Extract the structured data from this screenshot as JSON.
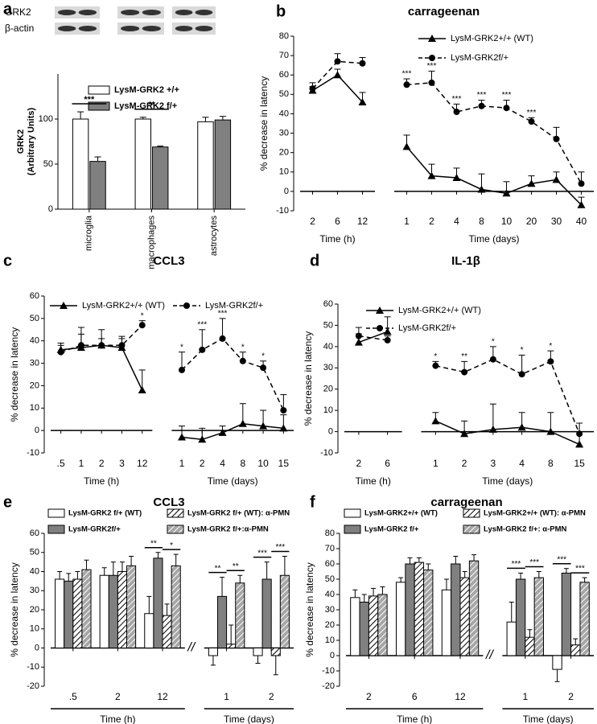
{
  "chart_data": [
    {
      "type": "bar",
      "label": "a",
      "blot_labels": [
        "GRK2",
        "β-actin"
      ],
      "ylabel": [
        "GRK2",
        "(Arbitrary Units)"
      ],
      "categories": [
        "microglia",
        "macrophages",
        "astrocytes"
      ],
      "series": [
        {
          "name": "LysM-GRK2 +/+",
          "color": "#ffffff",
          "values": [
            100,
            100,
            97
          ],
          "errors": [
            8,
            2,
            5
          ]
        },
        {
          "name": "LysM-GRK2 f/+",
          "color": "#808080",
          "values": [
            53,
            69,
            99
          ],
          "errors": [
            5,
            1,
            4
          ]
        }
      ],
      "stars": [
        "***",
        "**",
        null
      ],
      "ylim": [
        0,
        150
      ],
      "yticks": [
        0,
        50,
        100
      ]
    },
    {
      "type": "line",
      "label": "b",
      "title": "carrageenan",
      "ylabel": "% decrease in latency",
      "ylim": [
        -10,
        80
      ],
      "yticks": [
        -10,
        0,
        10,
        20,
        30,
        40,
        50,
        60,
        70,
        80
      ],
      "series": [
        {
          "name": "LysM-GRK2+/+ (WT)",
          "color": "#000000",
          "marker": "triangle",
          "dashed": false
        },
        {
          "name": "LysM-GRK2f/+",
          "color": "#000000",
          "marker": "circle",
          "dashed": true
        }
      ],
      "panels": [
        {
          "xlabel": "Time (h)",
          "categories": [
            "2",
            "6",
            "12"
          ],
          "values": [
            [
              52,
              60,
              46
            ],
            [
              53,
              67,
              66
            ]
          ],
          "errors": [
            [
              2,
              3,
              5
            ],
            [
              3,
              4,
              3
            ]
          ]
        },
        {
          "xlabel": "Time (days)",
          "categories": [
            "1",
            "2",
            "4",
            "8",
            "10",
            "20",
            "30",
            "40"
          ],
          "values": [
            [
              23,
              8,
              7,
              1,
              -1,
              4,
              6,
              -7
            ],
            [
              55,
              56,
              41,
              44,
              43,
              36,
              27,
              4
            ]
          ],
          "errors": [
            [
              6,
              6,
              5,
              8,
              6,
              4,
              4,
              4
            ],
            [
              3,
              6,
              4,
              3,
              4,
              2,
              6,
              6
            ]
          ],
          "stars": [
            "***",
            "***",
            "***",
            "***",
            "***",
            "***",
            null,
            null
          ]
        }
      ]
    },
    {
      "type": "line",
      "label": "c",
      "title": "CCL3",
      "ylabel": "% decrease in latency",
      "ylim": [
        -10,
        60
      ],
      "yticks": [
        -10,
        0,
        10,
        20,
        30,
        40,
        50,
        60
      ],
      "series": [
        {
          "name": "LysM-GRK2+/+ (WT)",
          "color": "#000000",
          "marker": "triangle",
          "dashed": false
        },
        {
          "name": "LysM-GRK2f/+",
          "color": "#000000",
          "marker": "circle",
          "dashed": true
        }
      ],
      "panels": [
        {
          "xlabel": "Time (h)",
          "categories": [
            ".5",
            "1",
            "2",
            "3",
            "12"
          ],
          "values": [
            [
              36,
              37,
              38,
              37,
              18
            ],
            [
              35,
              38,
              38,
              38,
              47
            ]
          ],
          "errors": [
            [
              2,
              9,
              7,
              5,
              9
            ],
            [
              4,
              5,
              3,
              3,
              2
            ]
          ],
          "stars": [
            null,
            null,
            null,
            null,
            "*"
          ]
        },
        {
          "xlabel": "Time (days)",
          "categories": [
            "1",
            "2",
            "4",
            "8",
            "10",
            "15"
          ],
          "values": [
            [
              -3,
              -4,
              -1,
              3,
              2,
              1
            ],
            [
              27,
              36,
              41,
              31,
              28,
              9
            ]
          ],
          "errors": [
            [
              5,
              5,
              3,
              9,
              7,
              6
            ],
            [
              8,
              9,
              9,
              4,
              3,
              7
            ]
          ],
          "stars": [
            "*",
            "***",
            "***",
            "*",
            "*",
            null
          ]
        }
      ]
    },
    {
      "type": "line",
      "label": "d",
      "title": "IL-1β",
      "ylabel": "% decrease in latency",
      "ylim": [
        -10,
        60
      ],
      "yticks": [
        -10,
        0,
        10,
        20,
        30,
        40,
        50,
        60
      ],
      "series": [
        {
          "name": "LysM-GRK2+/+ (WT)",
          "color": "#000000",
          "marker": "triangle",
          "dashed": false
        },
        {
          "name": "LysM-GRK2f/+",
          "color": "#000000",
          "marker": "circle",
          "dashed": true
        }
      ],
      "panels": [
        {
          "xlabel": "Time (h)",
          "categories": [
            "2",
            "6"
          ],
          "values": [
            [
              42,
              47
            ],
            [
              45,
              43
            ]
          ],
          "errors": [
            [
              4,
              7
            ],
            [
              4,
              2
            ]
          ]
        },
        {
          "xlabel": "Time (days)",
          "categories": [
            "1",
            "2",
            "3",
            "4",
            "8",
            "15"
          ],
          "values": [
            [
              5,
              -1,
              1,
              2,
              0,
              -6
            ],
            [
              31,
              28,
              34,
              27,
              33,
              -1
            ]
          ],
          "errors": [
            [
              4,
              6,
              12,
              7,
              9,
              6
            ],
            [
              2,
              5,
              6,
              9,
              5,
              5
            ]
          ],
          "stars": [
            "*",
            "**",
            "*",
            "*",
            "*",
            null
          ]
        }
      ]
    },
    {
      "type": "grouped-bar",
      "label": "e",
      "title": "CCL3",
      "ylabel": "% decrease in latency",
      "ylim": [
        -20,
        60
      ],
      "yticks": [
        -20,
        -10,
        0,
        10,
        20,
        30,
        40,
        50,
        60
      ],
      "series": [
        {
          "name": "LysM-GRK2 f/+ (WT)",
          "color": "#ffffff",
          "hatch": false
        },
        {
          "name": "LysM-GRK2f/+",
          "color": "#808080",
          "hatch": false
        },
        {
          "name": "LysM-GRK2 f/+ (WT): α-PMN",
          "color": "#ffffff",
          "hatch": true
        },
        {
          "name": "LysM-GRK2 f/+:α-PMN",
          "color": "#a6a6a6",
          "hatch": true
        }
      ],
      "panels": [
        {
          "xlabel": "Time (h)",
          "categories": [
            ".5",
            "2",
            "12"
          ],
          "values": [
            [
              36,
              38,
              18
            ],
            [
              35,
              38,
              47
            ],
            [
              36,
              40,
              17
            ],
            [
              41,
              43,
              43
            ]
          ],
          "errors": [
            [
              4,
              4,
              9
            ],
            [
              4,
              7,
              3
            ],
            [
              4,
              5,
              6
            ],
            [
              5,
              5,
              6
            ]
          ],
          "stars": [
            [
              null,
              null,
              "**"
            ],
            [
              null,
              null,
              "*"
            ]
          ]
        },
        {
          "xlabel": "Time (days)",
          "categories": [
            "1",
            "2"
          ],
          "values": [
            [
              -4,
              -4
            ],
            [
              27,
              36
            ],
            [
              2,
              -4
            ],
            [
              34,
              38
            ]
          ],
          "errors": [
            [
              5,
              4
            ],
            [
              10,
              9
            ],
            [
              10,
              10
            ],
            [
              4,
              10
            ]
          ],
          "stars": [
            [
              "**",
              "***"
            ],
            [
              "**",
              "***"
            ]
          ]
        }
      ]
    },
    {
      "type": "grouped-bar",
      "label": "f",
      "title": "carrageenan",
      "ylabel": "% decrease in latency",
      "ylim": [
        -20,
        80
      ],
      "yticks": [
        -20,
        -10,
        0,
        10,
        20,
        30,
        40,
        50,
        60,
        70,
        80
      ],
      "series": [
        {
          "name": "LysM-GRK2+/+ (WT)",
          "color": "#ffffff",
          "hatch": false
        },
        {
          "name": "LysM-GRK2 f/+",
          "color": "#808080",
          "hatch": false
        },
        {
          "name": "LysM-GRK2+/+ (WT): α-PMN",
          "color": "#ffffff",
          "hatch": true
        },
        {
          "name": "LysM-GRK2 f/+: α-PMN",
          "color": "#a6a6a6",
          "hatch": true
        }
      ],
      "panels": [
        {
          "xlabel": "Time (h)",
          "categories": [
            "2",
            "6",
            "12"
          ],
          "values": [
            [
              38,
              48,
              43
            ],
            [
              35,
              60,
              60
            ],
            [
              39,
              61,
              51
            ],
            [
              40,
              56,
              62
            ]
          ],
          "errors": [
            [
              5,
              3,
              7
            ],
            [
              5,
              4,
              5
            ],
            [
              5,
              3,
              4
            ],
            [
              5,
              4,
              4
            ]
          ]
        },
        {
          "xlabel": "Time (days)",
          "categories": [
            "1",
            "2"
          ],
          "values": [
            [
              22,
              -9
            ],
            [
              50,
              54
            ],
            [
              12,
              7
            ],
            [
              51,
              48
            ]
          ],
          "errors": [
            [
              13,
              8
            ],
            [
              4,
              3
            ],
            [
              5,
              4
            ],
            [
              4,
              3
            ]
          ],
          "stars": [
            [
              "***",
              "***"
            ],
            [
              "***",
              "***"
            ]
          ]
        }
      ]
    }
  ]
}
